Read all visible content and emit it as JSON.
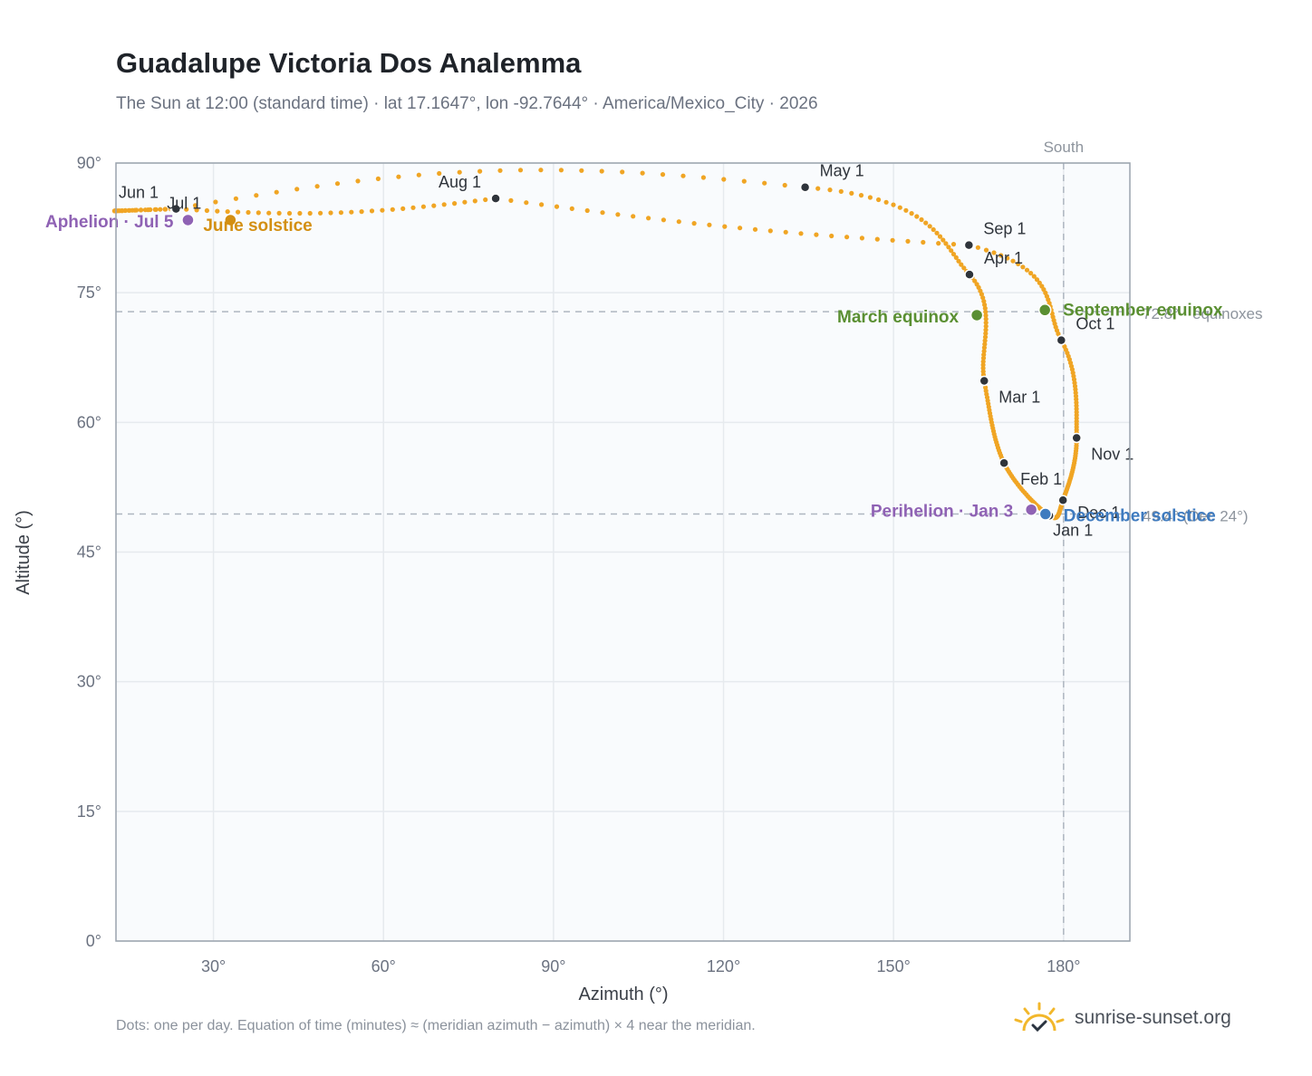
{
  "title": "Guadalupe Victoria Dos Analemma",
  "subtitle": "The Sun at 12:00 (standard time) · lat 17.1647°, lon -92.7644° · America/Mexico_City · 2026",
  "footnote": "Dots: one per day. Equation of time (minutes) ≈ (meridian azimuth − azimuth) × 4 near the meridian.",
  "brand": {
    "name": "sunrise-sunset.org",
    "icon": "sun-logo-icon"
  },
  "colors": {
    "path": "#f0a524",
    "month": "#2f343b",
    "equinox": "#5a8f32",
    "solstice_june": "#d38f12",
    "solstice_dec": "#3f7bbf",
    "apsis": "#8f62b4",
    "ref": "#aeb6c0",
    "plot_bg": "#f9fbfd",
    "grid": "#e6eaee"
  },
  "chart_data": {
    "type": "scatter",
    "xlabel": "Azimuth (°)",
    "ylabel": "Altitude (°)",
    "xlim": [
      12.8,
      191.7
    ],
    "ylim": [
      0,
      90
    ],
    "x_ticks": [
      30,
      60,
      90,
      120,
      150,
      180
    ],
    "x_tick_labels": [
      "30°",
      "60°",
      "90°",
      "120°",
      "150°",
      "180°"
    ],
    "y_ticks": [
      0,
      15,
      30,
      45,
      60,
      75,
      90
    ],
    "y_tick_labels": [
      "0°",
      "15°",
      "30°",
      "45°",
      "60°",
      "75°",
      "90°"
    ],
    "grid": true,
    "meridian": {
      "azimuth": 180,
      "label": "South"
    },
    "reference_lines": [
      {
        "altitude": 72.8,
        "label": "72.8° · equinoxes"
      },
      {
        "altitude": 49.4,
        "label": "49.4° (Dec 24°)"
      }
    ],
    "months": [
      {
        "date": "Jan 1",
        "azimuth": 177.5,
        "altitude": 49.2
      },
      {
        "date": "Feb 1",
        "azimuth": 169.5,
        "altitude": 55.3
      },
      {
        "date": "Mar 1",
        "azimuth": 166.0,
        "altitude": 64.8
      },
      {
        "date": "Apr 1",
        "azimuth": 163.4,
        "altitude": 77.1
      },
      {
        "date": "May 1",
        "azimuth": 134.4,
        "altitude": 87.2
      },
      {
        "date": "Jun 1",
        "azimuth": 23.2,
        "altitude": 84.7
      },
      {
        "date": "Jul 1",
        "azimuth": 23.4,
        "altitude": 84.7
      },
      {
        "date": "Aug 1",
        "azimuth": 79.8,
        "altitude": 85.9
      },
      {
        "date": "Sep 1",
        "azimuth": 163.3,
        "altitude": 80.5
      },
      {
        "date": "Oct 1",
        "azimuth": 179.6,
        "altitude": 69.5
      },
      {
        "date": "Nov 1",
        "azimuth": 182.3,
        "altitude": 58.2
      },
      {
        "date": "Dec 1",
        "azimuth": 179.9,
        "altitude": 51.0
      }
    ],
    "events": [
      {
        "label": "March equinox",
        "azimuth": 164.7,
        "altitude": 72.4,
        "kind": "equinox"
      },
      {
        "label": "September equinox",
        "azimuth": 176.7,
        "altitude": 73.0,
        "kind": "equinox"
      },
      {
        "label": "June solstice",
        "azimuth": 33.0,
        "altitude": 83.4,
        "kind": "solstice_june"
      },
      {
        "label": "December solstice",
        "azimuth": 176.8,
        "altitude": 49.4,
        "kind": "solstice_dec"
      },
      {
        "label": "Aphelion · Jul 5",
        "azimuth": 25.5,
        "altitude": 83.4,
        "kind": "apsis"
      },
      {
        "label": "Perihelion · Jan 3",
        "azimuth": 174.3,
        "altitude": 49.9,
        "kind": "apsis"
      }
    ]
  }
}
